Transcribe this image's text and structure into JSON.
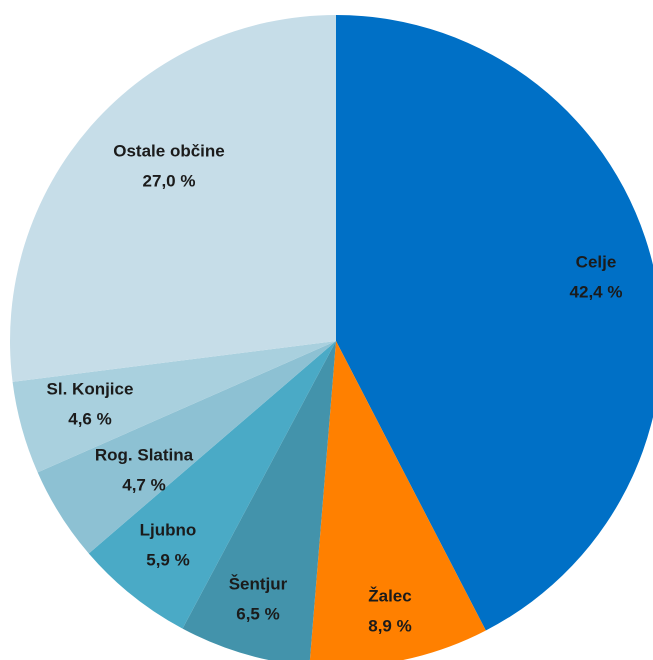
{
  "chart_data": {
    "type": "pie",
    "categories": [
      "Celje",
      "Žalec",
      "Šentjur",
      "Ljubno",
      "Rog. Slatina",
      "Sl. Konjice",
      "Ostale občine"
    ],
    "values": [
      42.4,
      8.9,
      6.5,
      5.9,
      4.7,
      4.6,
      27.0
    ],
    "value_labels": [
      "42,4 %",
      "8,9 %",
      "6,5 %",
      "5,9 %",
      "4,7 %",
      "4,6 %",
      "27,0 %"
    ],
    "colors": [
      "#0070c6",
      "#ff8000",
      "#4393ab",
      "#4aaac6",
      "#8dc1d3",
      "#a9d0de",
      "#c6dde8"
    ]
  }
}
